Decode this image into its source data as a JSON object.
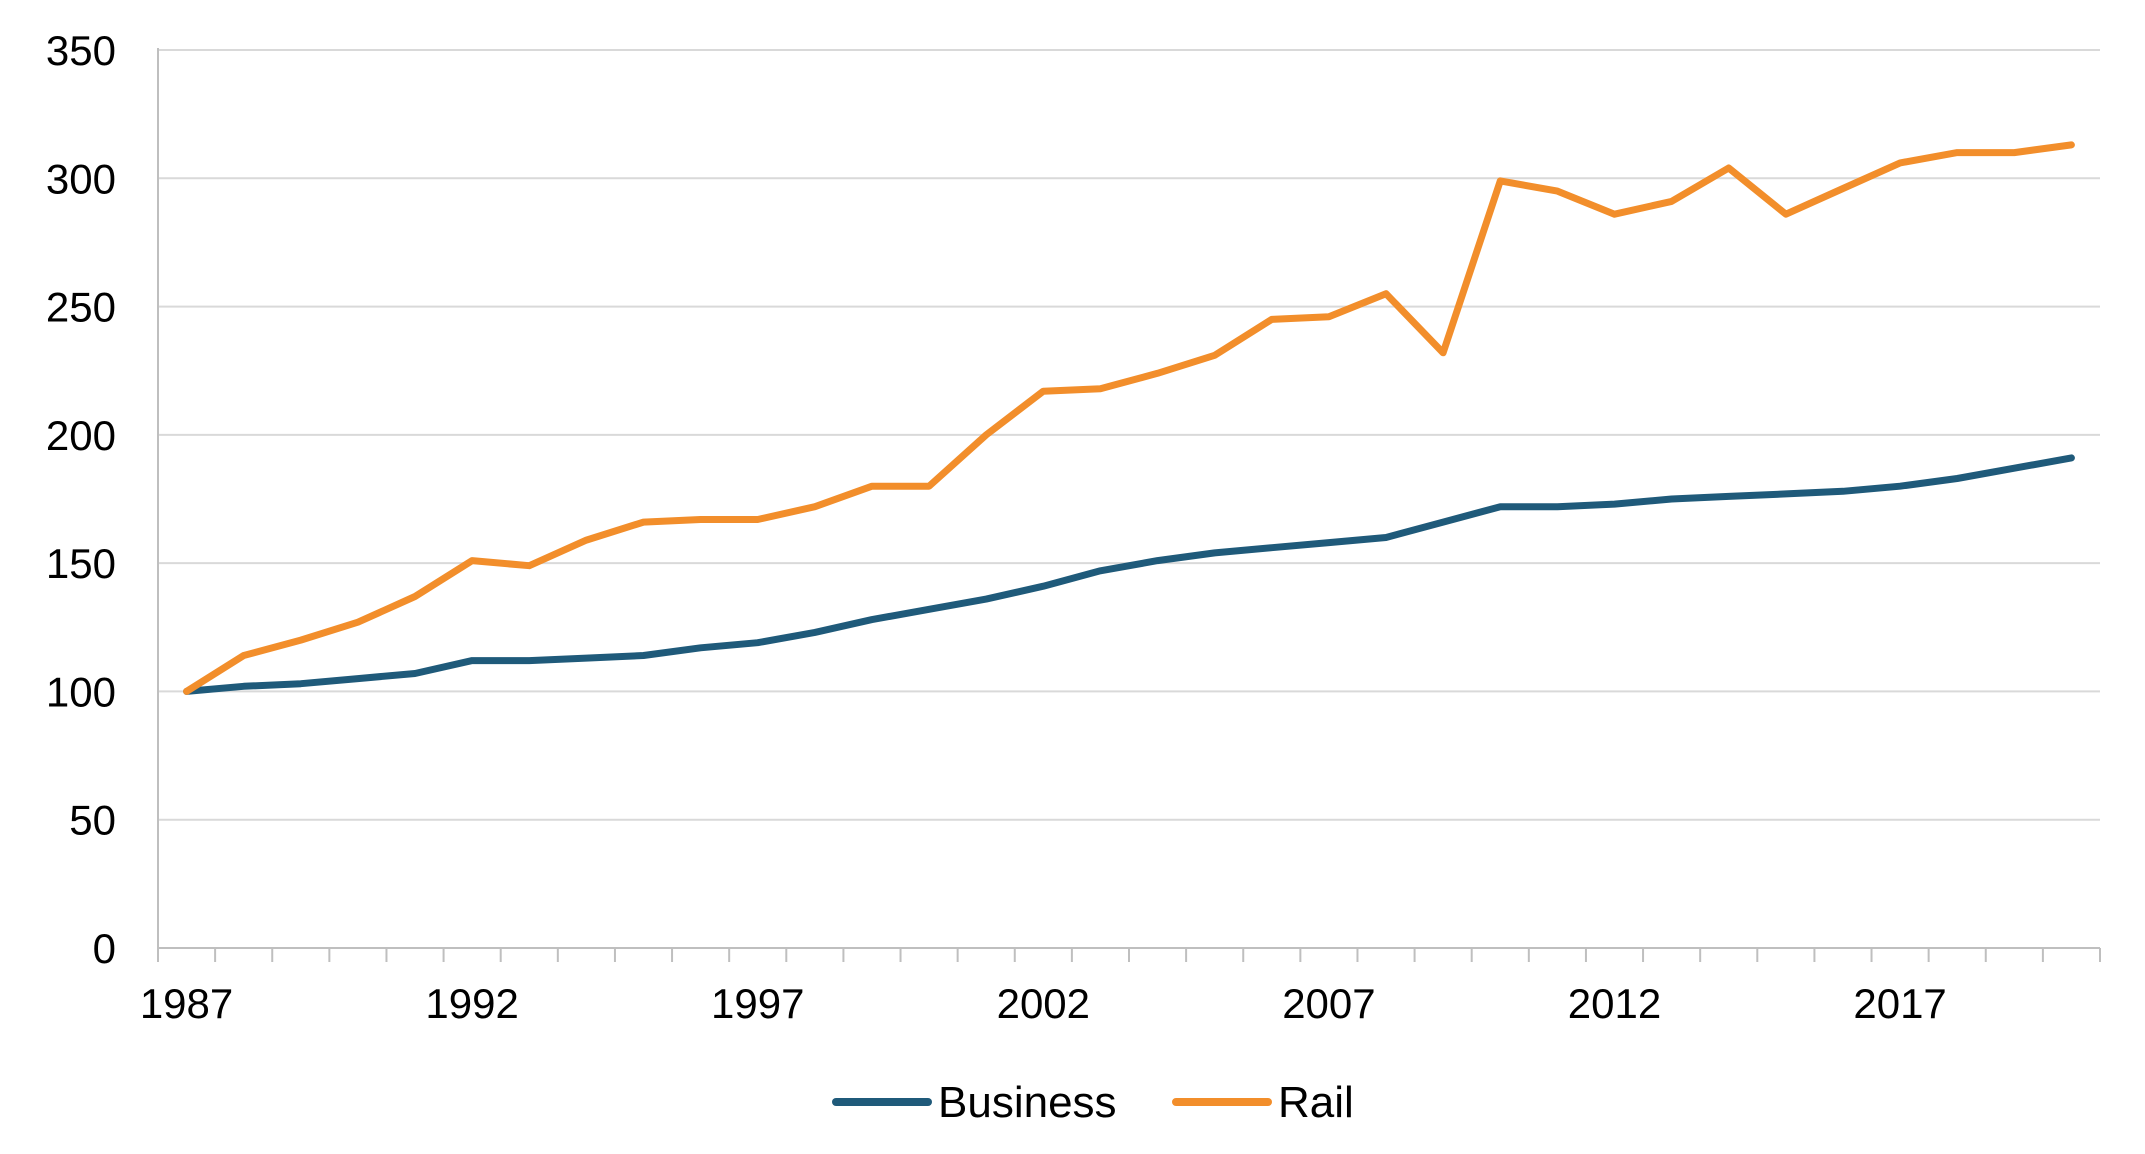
{
  "chart_data": {
    "type": "line",
    "title": "",
    "xlabel": "",
    "ylabel": "",
    "x": [
      1987,
      1988,
      1989,
      1990,
      1991,
      1992,
      1993,
      1994,
      1995,
      1996,
      1997,
      1998,
      1999,
      2000,
      2001,
      2002,
      2003,
      2004,
      2005,
      2006,
      2007,
      2008,
      2009,
      2010,
      2011,
      2012,
      2013,
      2014,
      2015,
      2016,
      2017,
      2018,
      2019,
      2020
    ],
    "xlim": [
      1986.5,
      2020.5
    ],
    "ylim": [
      0,
      350
    ],
    "x_ticks": [
      "1987",
      "1992",
      "1997",
      "2002",
      "2007",
      "2012",
      "2017"
    ],
    "x_tick_values": [
      1987,
      1992,
      1997,
      2002,
      2007,
      2012,
      2017
    ],
    "y_ticks": [
      "0",
      "50",
      "100",
      "150",
      "200",
      "250",
      "300",
      "350"
    ],
    "y_tick_values": [
      0,
      50,
      100,
      150,
      200,
      250,
      300,
      350
    ],
    "grid": true,
    "legend_position": "bottom-center",
    "series": [
      {
        "name": "Business",
        "color": "#1f5a7a",
        "values": [
          100,
          102,
          103,
          105,
          107,
          112,
          112,
          113,
          114,
          117,
          119,
          123,
          128,
          132,
          136,
          141,
          147,
          151,
          154,
          156,
          158,
          160,
          166,
          172,
          172,
          173,
          175,
          176,
          177,
          178,
          180,
          183,
          187,
          191
        ]
      },
      {
        "name": "Rail",
        "color": "#f28e2b",
        "values": [
          100,
          114,
          120,
          127,
          137,
          151,
          149,
          159,
          166,
          167,
          167,
          172,
          180,
          180,
          200,
          217,
          218,
          224,
          231,
          245,
          246,
          255,
          232,
          299,
          295,
          286,
          291,
          304,
          286,
          296,
          306,
          310,
          310,
          313
        ]
      }
    ]
  }
}
